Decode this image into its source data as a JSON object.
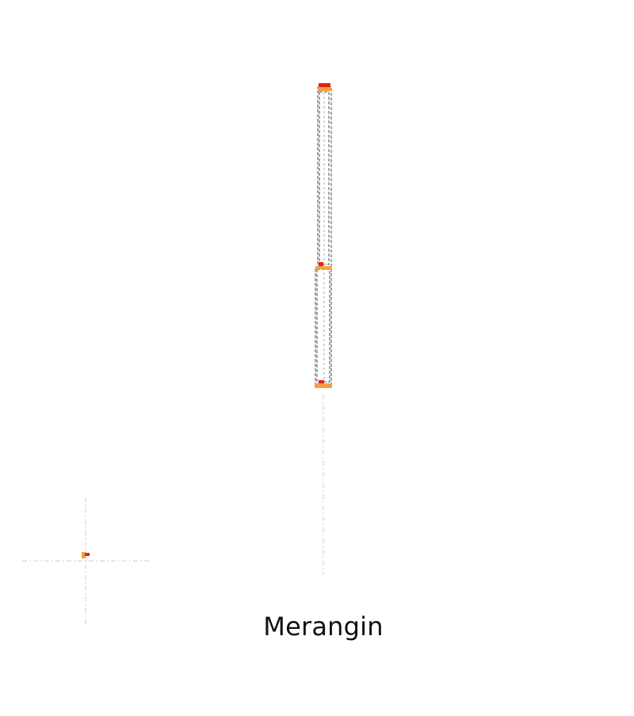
{
  "title": "Merangin",
  "colors": {
    "guide": "#cfcfcf",
    "outline": "#777777",
    "highlight": "#f5a040",
    "marker": "#e2231a"
  }
}
